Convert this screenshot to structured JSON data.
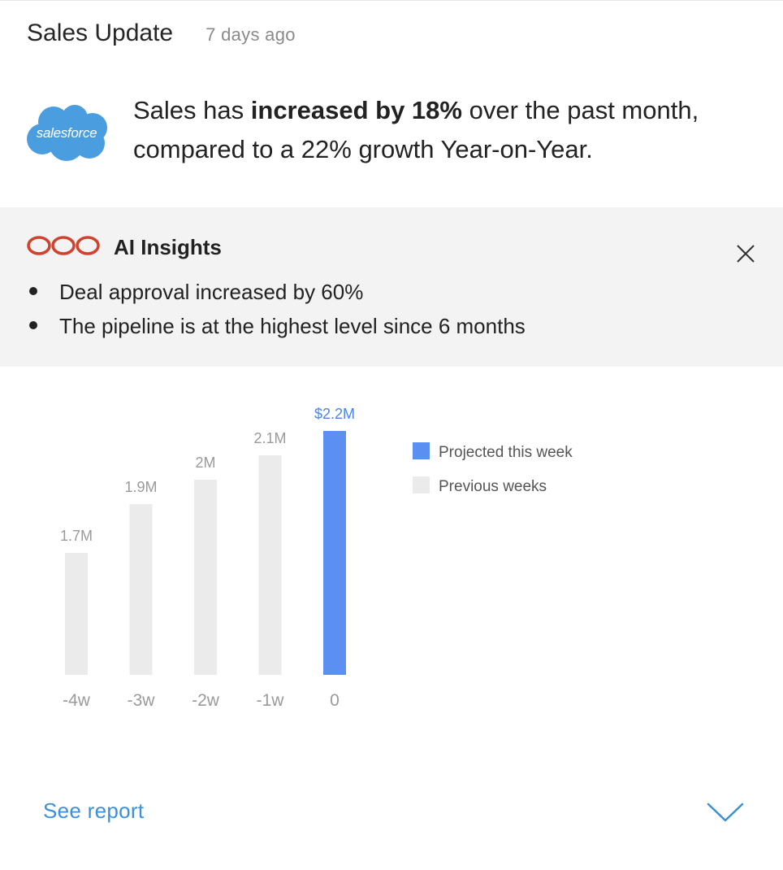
{
  "header": {
    "title": "Sales Update",
    "timestamp": "7 days ago"
  },
  "summary": {
    "logo_text": "salesforce",
    "logo_color": "#4a9ee0",
    "text_before": "Sales has ",
    "text_bold": "increased by 18%",
    "text_after": " over the past month, compared to a 22% growth Year-on-Year."
  },
  "insights": {
    "title": "AI Insights",
    "icon": "infinity-icon",
    "icon_color": "#d0422e",
    "items": [
      "Deal approval increased by 60%",
      "The pipeline is at the highest level since 6 months"
    ],
    "close_icon": "close-icon"
  },
  "chart_data": {
    "type": "bar",
    "categories": [
      "-4w",
      "-3w",
      "-2w",
      "-1w",
      "0"
    ],
    "values": [
      1.7,
      1.9,
      2.0,
      2.1,
      2.2
    ],
    "value_labels": [
      "1.7M",
      "1.9M",
      "2M",
      "2.1M",
      "$2.2M"
    ],
    "highlight_index": 4,
    "ylim": [
      0,
      2.2
    ],
    "grid": false,
    "colors": {
      "previous": "#ebebeb",
      "projected": "#5b8ff2",
      "label_previous": "#9a9a9a",
      "label_projected": "#4a86e8",
      "tick": "#9a9a9a"
    },
    "legend": {
      "placement": "right",
      "items": [
        {
          "label": "Projected this week",
          "color": "#5b8ff2"
        },
        {
          "label": "Previous weeks",
          "color": "#ebebeb"
        }
      ]
    }
  },
  "footer": {
    "see_report_label": "See report",
    "expand_icon": "chevron-down-icon"
  }
}
